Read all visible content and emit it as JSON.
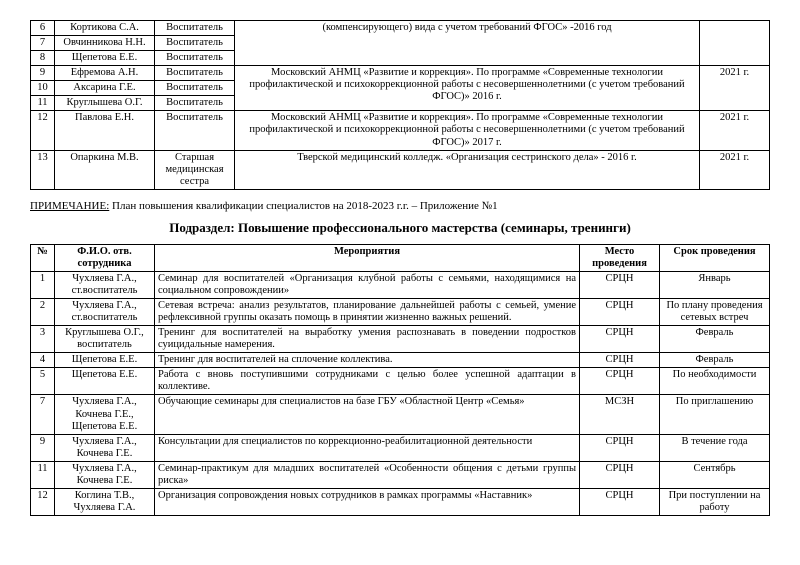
{
  "table1": {
    "groups": [
      {
        "desc": "(компенсирующего) вида с учетом требований ФГОС» -2016 год",
        "year": "",
        "rows": [
          {
            "n": "6",
            "name": "Кортикова С.А.",
            "role": "Воспитатель"
          },
          {
            "n": "7",
            "name": "Овчинникова Н.Н.",
            "role": "Воспитатель"
          },
          {
            "n": "8",
            "name": "Щепетова Е.Е.",
            "role": "Воспитатель"
          }
        ]
      },
      {
        "desc": "Московский АНМЦ «Развитие и коррекция». По программе «Современные технологии профилактической и психокоррекционной работы с несовершеннолетними (с учетом требований ФГОС)» 2016 г.",
        "year": "2021 г.",
        "rows": [
          {
            "n": "9",
            "name": "Ефремова А.Н.",
            "role": "Воспитатель"
          },
          {
            "n": "10",
            "name": "Аксарина Г.Е.",
            "role": "Воспитатель"
          },
          {
            "n": "11",
            "name": "Круглышева О.Г.",
            "role": "Воспитатель"
          }
        ]
      },
      {
        "desc": "Московский АНМЦ «Развитие и коррекция». По программе «Современные технологии профилактической и психокоррекционной работы с несовершеннолетними (с учетом требований ФГОС)» 2017 г.",
        "year": "2021 г.",
        "rows": [
          {
            "n": "12",
            "name": "Павлова Е.Н.",
            "role": "Воспитатель"
          }
        ]
      },
      {
        "desc": "Тверской медицинский колледж. «Организация сестринского дела» - 2016 г.",
        "year": "2021 г.",
        "rows": [
          {
            "n": "13",
            "name": "Опаркина М.В.",
            "role": "Старшая медицинская сестра"
          }
        ]
      }
    ]
  },
  "note": {
    "label": "ПРИМЕЧАНИЕ:",
    "text": "План повышения квалификации специалистов на 2018-2023 г.г. – Приложение №1"
  },
  "subhead": "Подраздел: Повышение профессионального мастерства (семинары, тренинги)",
  "table2": {
    "headers": {
      "n": "№",
      "name": "Ф.И.О. отв. сотрудника",
      "act": "Мероприятия",
      "place": "Место проведения",
      "term": "Срок проведения"
    },
    "rows": [
      {
        "n": "1",
        "name": "Чухляева Г.А., ст.воспитатель",
        "act": "Семинар для воспитателей «Организация клубной работы с семьями, находящимися на социальном сопровождении»",
        "place": "СРЦН",
        "term": "Январь"
      },
      {
        "n": "2",
        "name": "Чухляева Г.А., ст.воспитатель",
        "act": "Сетевая встреча: анализ результатов, планирование дальнейшей работы с семьей, умение рефлексивной группы оказать помощь в принятии жизненно важных решений.",
        "place": "СРЦН",
        "term": "По плану проведения сетевых встреч"
      },
      {
        "n": "3",
        "name": "Круглышева О.Г., воспитатель",
        "act": "Тренинг для воспитателей на выработку умения распознавать в поведении подростков суицидальные намерения.",
        "place": "СРЦН",
        "term": "Февраль"
      },
      {
        "n": "4",
        "name": "Щепетова Е.Е.",
        "act": "Тренинг для воспитателей на сплочение коллектива.",
        "place": "СРЦН",
        "term": "Февраль"
      },
      {
        "n": "5",
        "name": "Щепетова Е.Е.",
        "act": "Работа с вновь поступившими сотрудниками с целью более успешной адаптации в коллективе.",
        "place": "СРЦН",
        "term": "По необходимости"
      },
      {
        "n": "7",
        "name": "Чухляева Г.А., Кочнева Г.Е., Щепетова Е.Е.",
        "act": "Обучающие семинары для специалистов на базе ГБУ «Областной Центр «Семья»",
        "place": "МСЗН",
        "term": "По приглашению"
      },
      {
        "n": "9",
        "name": "Чухляева Г.А., Кочнева Г.Е.",
        "act": "Консультации для специалистов по коррекционно-реабилитационной деятельности",
        "place": "СРЦН",
        "term": "В течение года"
      },
      {
        "n": "11",
        "name": "Чухляева Г.А., Кочнева Г.Е.",
        "act": "Семинар-практикум для младших воспитателей «Особенности общения с детьми группы риска»",
        "place": "СРЦН",
        "term": "Сентябрь"
      },
      {
        "n": "12",
        "name": "Коглина Т.В., Чухляева Г.А.",
        "act": "Организация сопровождения новых сотрудников в рамках программы «Наставник»",
        "place": "СРЦН",
        "term": "При поступлении на работу"
      }
    ]
  }
}
